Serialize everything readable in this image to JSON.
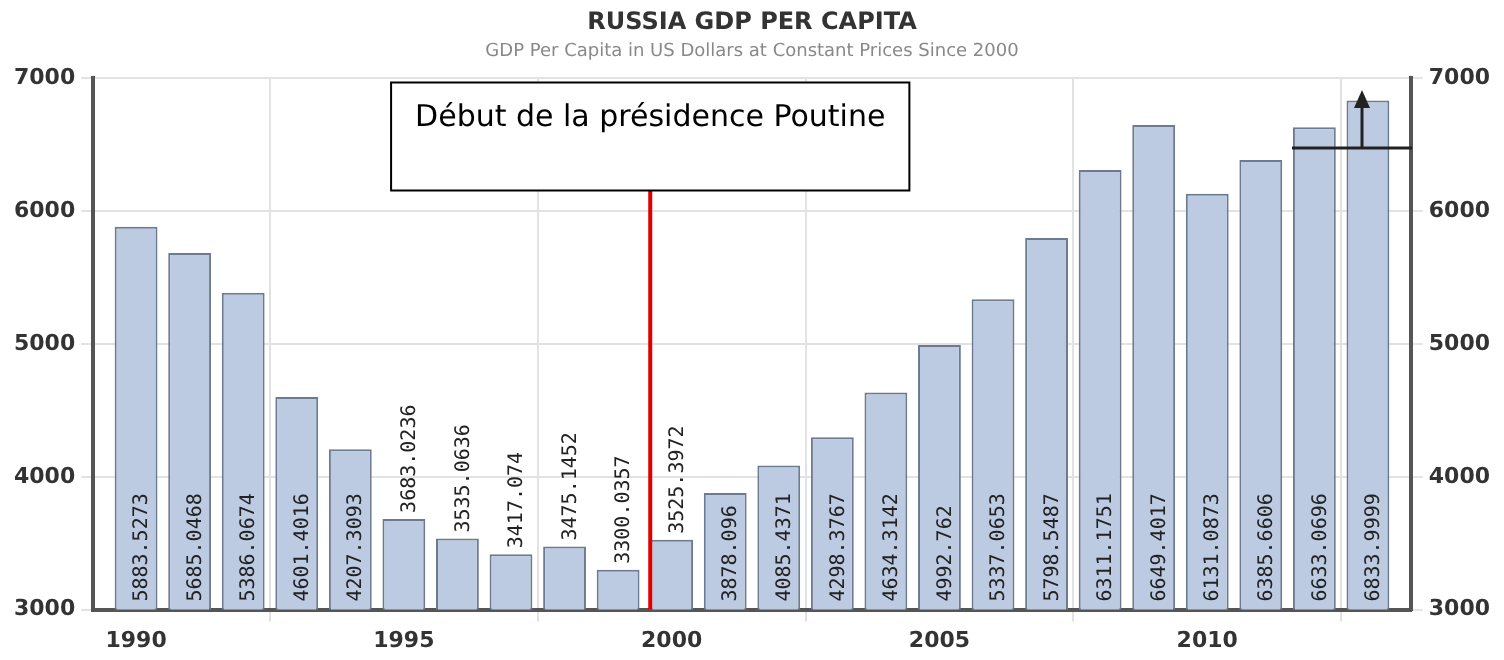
{
  "chart_data": {
    "type": "bar",
    "title": "RUSSIA GDP PER CAPITA",
    "subtitle": "GDP Per Capita in US Dollars at Constant Prices Since 2000",
    "x": [
      1990,
      1991,
      1992,
      1993,
      1994,
      1995,
      1996,
      1997,
      1998,
      1999,
      2000,
      2001,
      2002,
      2003,
      2004,
      2005,
      2006,
      2007,
      2008,
      2009,
      2010,
      2011,
      2012,
      2013
    ],
    "values": [
      5883.5273,
      5685.0468,
      5386.0674,
      4601.4016,
      4207.3093,
      3683.0236,
      3535.0636,
      3417.074,
      3475.1452,
      3300.0357,
      3525.3972,
      3878.096,
      4085.4371,
      4298.3767,
      4634.3142,
      4992.762,
      5337.0653,
      5798.5487,
      6311.1751,
      6649.4017,
      6131.0873,
      6385.6606,
      6633.0696,
      6833.9999
    ],
    "color": "#bccbe2",
    "xlim": [
      1989.2,
      2013.8
    ],
    "xticks": [
      1990,
      1995,
      2000,
      2005,
      2010
    ],
    "ylim": [
      3000,
      7000
    ],
    "yticks": [
      3000,
      4000,
      5000,
      6000,
      7000
    ],
    "y2lim": [
      3000,
      7000
    ],
    "y2ticks": [
      3000,
      4000,
      5000,
      6000,
      7000
    ],
    "grid": true,
    "data_labels": true,
    "ref_lines": [
      {
        "axis": "x",
        "value": 1999.6,
        "label": "Début de la présidence Poutine",
        "color": "#e00000"
      }
    ]
  }
}
